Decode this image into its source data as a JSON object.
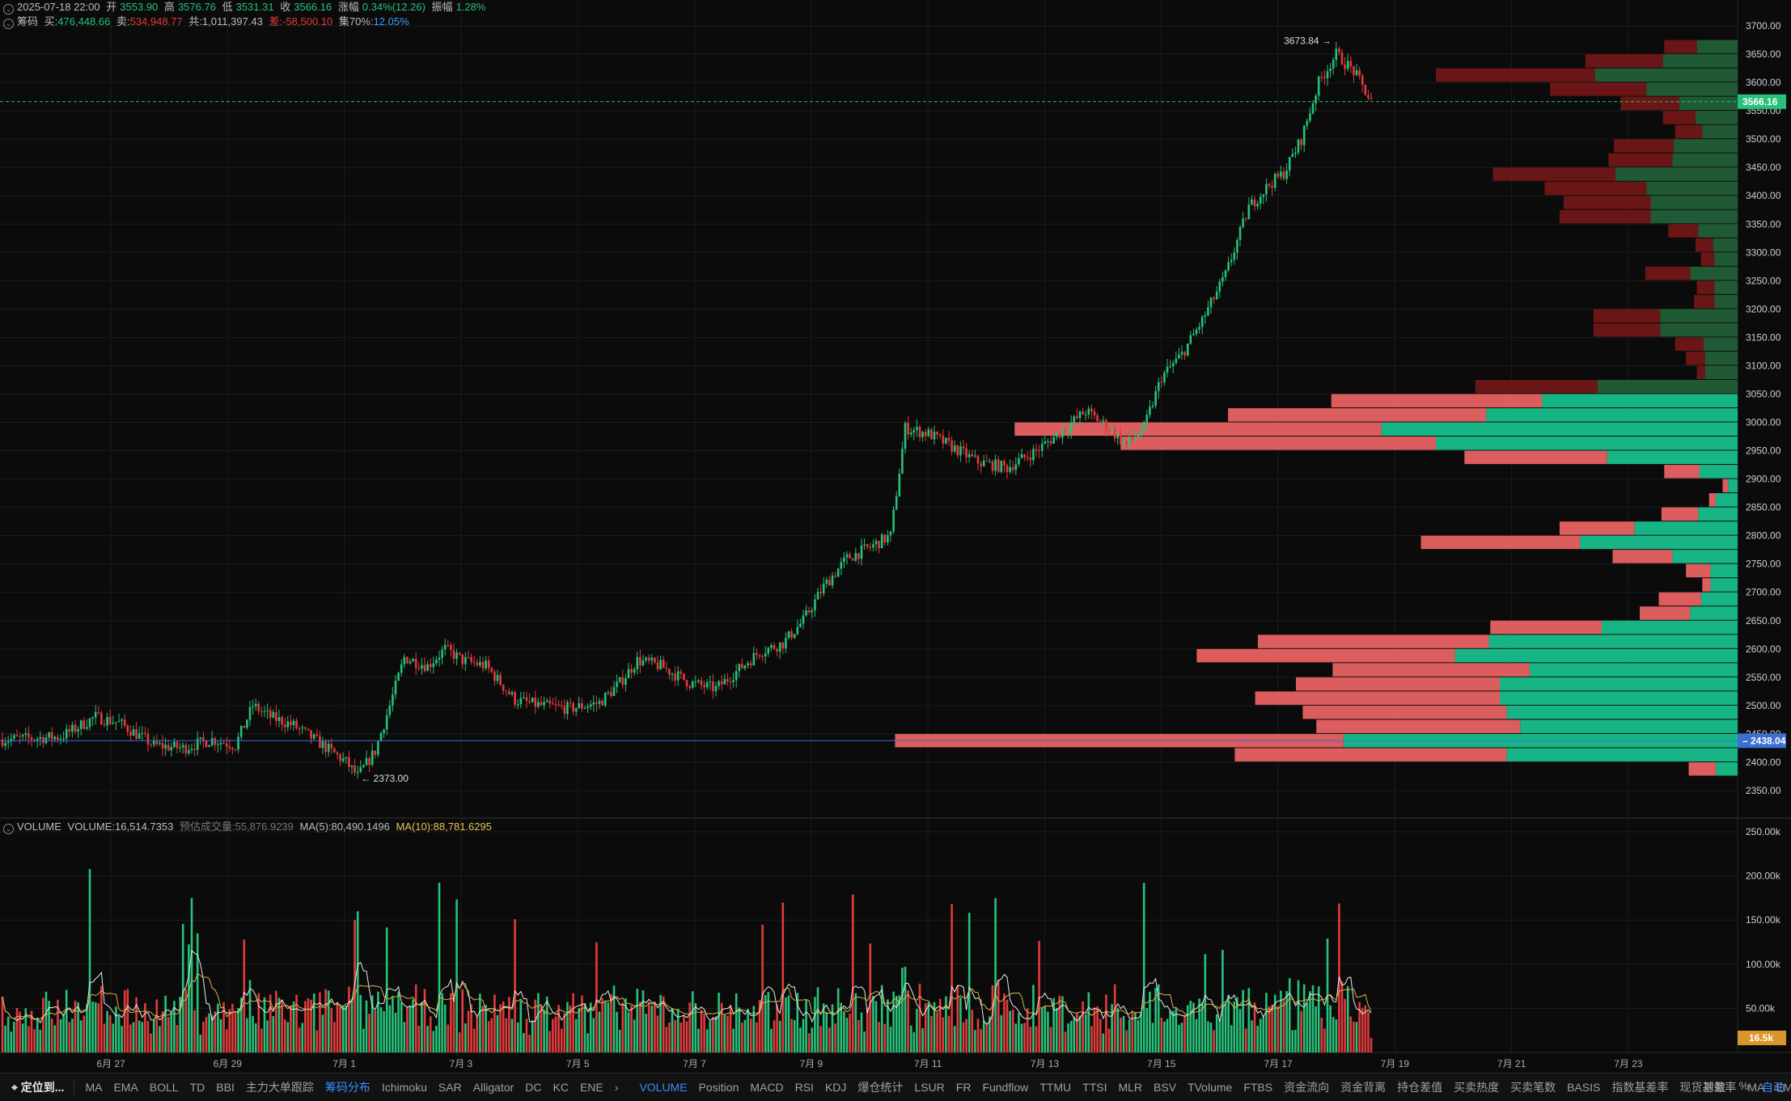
{
  "header": {
    "ohlc": {
      "datetime": "2025-07-18 22:00",
      "open_label": "开",
      "open": "3553.90",
      "high_label": "高",
      "high": "3576.76",
      "low_label": "低",
      "low": "3531.31",
      "close_label": "收",
      "close": "3566.16",
      "change_label": "涨幅",
      "change": "0.34%(12.26)",
      "amplitude_label": "振幅",
      "amplitude": "1.28%"
    },
    "chips": {
      "name": "筹码",
      "buy_label": "买:",
      "buy": "476,448.66",
      "sell_label": "卖:",
      "sell": "534,948.77",
      "total_label": "共:",
      "total": "1,011,397.43",
      "diff_label": "差:",
      "diff": "-58,500.10",
      "conc_label": "集70%:",
      "conc": "12.05%"
    }
  },
  "volume_header": {
    "name": "VOLUME",
    "volume_label": "VOLUME:",
    "volume": "16,514.7353",
    "est_label": "预估成交量:",
    "est": "55,876.9239",
    "ma5_label": "MA(5):",
    "ma5": "80,490.1496",
    "ma10_label": "MA(10):",
    "ma10": "88,781.6295"
  },
  "annotations": {
    "high": "3673.84",
    "low": "2373.00"
  },
  "markers": {
    "current_price": "3566.16",
    "poc_price": "2438.04",
    "current_volume": "16.5k"
  },
  "colors": {
    "up": "#27c17a",
    "down": "#e23b3b",
    "profile_up": "#17b585",
    "profile_down": "#dc5d5d",
    "ma5": "#e8e8e8",
    "ma10": "#d6b44a",
    "accent": "#3b8cff"
  },
  "chart_data": {
    "type": "candlestick",
    "price_axis": {
      "min": 2350,
      "max": 3700,
      "step": 50,
      "ticks": [
        "3700.00",
        "3650.00",
        "3600.00",
        "3550.00",
        "3500.00",
        "3450.00",
        "3400.00",
        "3350.00",
        "3300.00",
        "3250.00",
        "3200.00",
        "3150.00",
        "3100.00",
        "3050.00",
        "3000.00",
        "2950.00",
        "2900.00",
        "2850.00",
        "2800.00",
        "2750.00",
        "2700.00",
        "2650.00",
        "2600.00",
        "2550.00",
        "2500.00",
        "2450.00",
        "2400.00",
        "2350.00"
      ]
    },
    "volume_axis": {
      "min": 0,
      "max": 250000,
      "ticks": [
        "250.00k",
        "200.00k",
        "150.00k",
        "100.00k",
        "50.00k"
      ]
    },
    "date_axis": [
      "6月 27",
      "6月 29",
      "7月 1",
      "7月 3",
      "7月 5",
      "7月 7",
      "7月 9",
      "7月 11",
      "7月 13",
      "7月 15",
      "7月 17",
      "7月 19",
      "7月 21",
      "7月 23"
    ],
    "price_path_keypoints": [
      [
        0,
        2440
      ],
      [
        20,
        2445
      ],
      [
        32,
        2480
      ],
      [
        40,
        2470
      ],
      [
        52,
        2430
      ],
      [
        62,
        2425
      ],
      [
        72,
        2440
      ],
      [
        80,
        2430
      ],
      [
        86,
        2500
      ],
      [
        92,
        2480
      ],
      [
        100,
        2465
      ],
      [
        110,
        2430
      ],
      [
        118,
        2400
      ],
      [
        122,
        2375
      ],
      [
        128,
        2420
      ],
      [
        133,
        2500
      ],
      [
        138,
        2585
      ],
      [
        146,
        2570
      ],
      [
        152,
        2600
      ],
      [
        158,
        2580
      ],
      [
        166,
        2570
      ],
      [
        176,
        2510
      ],
      [
        185,
        2500
      ],
      [
        195,
        2495
      ],
      [
        205,
        2505
      ],
      [
        212,
        2540
      ],
      [
        218,
        2580
      ],
      [
        226,
        2570
      ],
      [
        236,
        2540
      ],
      [
        245,
        2530
      ],
      [
        252,
        2560
      ],
      [
        260,
        2595
      ],
      [
        268,
        2610
      ],
      [
        275,
        2650
      ],
      [
        282,
        2710
      ],
      [
        290,
        2760
      ],
      [
        298,
        2780
      ],
      [
        305,
        2800
      ],
      [
        310,
        2990
      ],
      [
        318,
        2980
      ],
      [
        325,
        2960
      ],
      [
        335,
        2930
      ],
      [
        345,
        2920
      ],
      [
        355,
        2950
      ],
      [
        365,
        2990
      ],
      [
        372,
        3020
      ],
      [
        380,
        2990
      ],
      [
        386,
        2960
      ],
      [
        392,
        2990
      ],
      [
        398,
        3080
      ],
      [
        405,
        3120
      ],
      [
        412,
        3180
      ],
      [
        420,
        3260
      ],
      [
        428,
        3380
      ],
      [
        435,
        3420
      ],
      [
        440,
        3440
      ],
      [
        446,
        3500
      ],
      [
        452,
        3600
      ],
      [
        458,
        3650
      ],
      [
        464,
        3620
      ],
      [
        470,
        3566
      ]
    ],
    "volume_profile": [
      {
        "price": 2375,
        "sell": 2000,
        "buy": 1600
      },
      {
        "price": 2400,
        "sell": 20000,
        "buy": 17000
      },
      {
        "price": 2425,
        "sell": 33000,
        "buy": 29000
      },
      {
        "price": 2450,
        "sell": 15000,
        "buy": 16000
      },
      {
        "price": 2475,
        "sell": 15000,
        "buy": 17000
      },
      {
        "price": 2500,
        "sell": 18000,
        "buy": 17500
      },
      {
        "price": 2525,
        "sell": 15000,
        "buy": 17500
      },
      {
        "price": 2550,
        "sell": 14500,
        "buy": 15300
      },
      {
        "price": 2575,
        "sell": 19000,
        "buy": 20800
      },
      {
        "price": 2600,
        "sell": 17000,
        "buy": 18300
      },
      {
        "price": 2625,
        "sell": 8200,
        "buy": 10000
      },
      {
        "price": 2650,
        "sell": 3700,
        "buy": 3500
      },
      {
        "price": 2675,
        "sell": 3100,
        "buy": 2700
      },
      {
        "price": 2700,
        "sell": 600,
        "buy": 2000
      },
      {
        "price": 2725,
        "sell": 1800,
        "buy": 2000
      },
      {
        "price": 2750,
        "sell": 4400,
        "buy": 4800
      },
      {
        "price": 2775,
        "sell": 11700,
        "buy": 11600
      },
      {
        "price": 2800,
        "sell": 5500,
        "buy": 7600
      },
      {
        "price": 2825,
        "sell": 2700,
        "buy": 2900
      },
      {
        "price": 2850,
        "sell": 500,
        "buy": 1600
      },
      {
        "price": 2875,
        "sell": 400,
        "buy": 700
      },
      {
        "price": 2900,
        "sell": 2600,
        "buy": 2800
      },
      {
        "price": 2925,
        "sell": 10500,
        "buy": 9600
      },
      {
        "price": 2950,
        "sell": 23200,
        "buy": 22200
      },
      {
        "price": 2975,
        "sell": 27000,
        "buy": 26200
      },
      {
        "price": 3000,
        "sell": 19000,
        "buy": 18500
      },
      {
        "price": 3025,
        "sell": 15500,
        "buy": 14400
      },
      {
        "price": 3050,
        "sell": 9000,
        "buy": 10300
      },
      {
        "price": 3075,
        "sell": 600,
        "buy": 2400
      },
      {
        "price": 3100,
        "sell": 1400,
        "buy": 2400
      },
      {
        "price": 3125,
        "sell": 2100,
        "buy": 2500
      },
      {
        "price": 3150,
        "sell": 4900,
        "buy": 5700
      },
      {
        "price": 3175,
        "sell": 4900,
        "buy": 5700
      },
      {
        "price": 3200,
        "sell": 1500,
        "buy": 1700
      },
      {
        "price": 3225,
        "sell": 1300,
        "buy": 1700
      },
      {
        "price": 3250,
        "sell": 3300,
        "buy": 3500
      },
      {
        "price": 3275,
        "sell": 1000,
        "buy": 1700
      },
      {
        "price": 3300,
        "sell": 1300,
        "buy": 1800
      },
      {
        "price": 3325,
        "sell": 2200,
        "buy": 2900
      },
      {
        "price": 3350,
        "sell": 6700,
        "buy": 6400
      },
      {
        "price": 3375,
        "sell": 6400,
        "buy": 6400
      },
      {
        "price": 3400,
        "sell": 7500,
        "buy": 6700
      },
      {
        "price": 3425,
        "sell": 9000,
        "buy": 9000
      },
      {
        "price": 3450,
        "sell": 4700,
        "buy": 4800
      },
      {
        "price": 3475,
        "sell": 4400,
        "buy": 4700
      },
      {
        "price": 3500,
        "sell": 2000,
        "buy": 2600
      },
      {
        "price": 3525,
        "sell": 2400,
        "buy": 3100
      },
      {
        "price": 3550,
        "sell": 4300,
        "buy": 4300
      },
      {
        "price": 3575,
        "sell": 7100,
        "buy": 6700
      },
      {
        "price": 3600,
        "sell": 11700,
        "buy": 10500
      },
      {
        "price": 3625,
        "sell": 5700,
        "buy": 5500
      },
      {
        "price": 3650,
        "sell": 2400,
        "buy": 3000
      }
    ]
  },
  "toolbar": {
    "locate": "定位到...",
    "indicators_left": [
      "MA",
      "EMA",
      "BOLL",
      "TD",
      "BBI",
      "主力大单跟踪",
      "筹码分布",
      "Ichimoku",
      "SAR",
      "Alligator",
      "DC",
      "KC",
      "ENE"
    ],
    "active_left": "筹码分布",
    "more": "›",
    "indicators_right": [
      "VOLUME",
      "Position",
      "MACD",
      "RSI",
      "KDJ",
      "爆仓统计",
      "LSUR",
      "FR",
      "Fundflow",
      "TTMU",
      "TTSI",
      "MLR",
      "BSV",
      "TVolume",
      "FTBS",
      "资金流向",
      "资金背离",
      "持仓差值",
      "买卖热度",
      "买卖笔数",
      "BASIS",
      "指数基差率",
      "现货基差率",
      "MA",
      "EMA"
    ],
    "active_right": "VOLUME",
    "right_controls": [
      "对数",
      "%",
      "自动"
    ],
    "active_control": "自动"
  }
}
